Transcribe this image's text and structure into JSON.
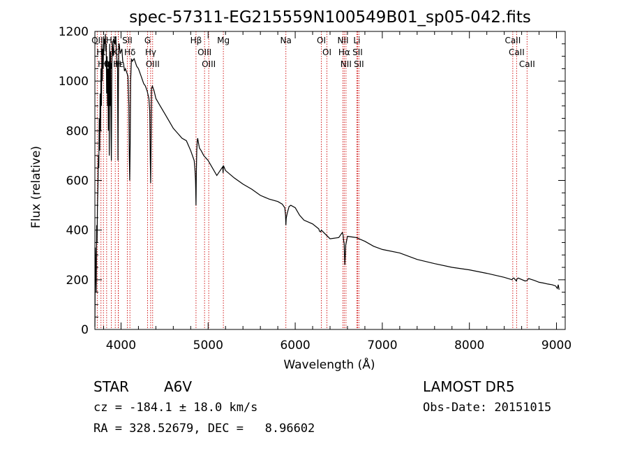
{
  "chart_data": {
    "type": "line",
    "title": "spec-57311-EG215559N100549B01_sp05-042.fits",
    "xlabel": "Wavelength (Å)",
    "ylabel": "Flux (relative)",
    "xlim": [
      3700,
      9100
    ],
    "ylim": [
      0,
      1200
    ],
    "xticks": [
      4000,
      5000,
      6000,
      7000,
      8000,
      9000
    ],
    "xtick_labels": [
      "4000",
      "5000",
      "6000",
      "7000",
      "8000",
      "9000"
    ],
    "yticks": [
      0,
      200,
      400,
      600,
      800,
      1000,
      1200
    ],
    "ytick_labels": [
      "0",
      "200",
      "400",
      "600",
      "800",
      "1000",
      "1200"
    ],
    "grid": false,
    "legend": "none",
    "colors": {
      "spectrum": "#000000",
      "lines": "#cc0000",
      "axes": "#000000"
    },
    "spectrum": {
      "x": [
        3700,
        3705,
        3710,
        3715,
        3720,
        3725,
        3730,
        3735,
        3740,
        3745,
        3750,
        3755,
        3760,
        3765,
        3770,
        3775,
        3780,
        3785,
        3790,
        3795,
        3800,
        3805,
        3810,
        3815,
        3820,
        3825,
        3830,
        3835,
        3840,
        3845,
        3850,
        3855,
        3860,
        3865,
        3870,
        3875,
        3880,
        3885,
        3889,
        3895,
        3900,
        3910,
        3920,
        3930,
        3940,
        3950,
        3960,
        3965,
        3970,
        3975,
        3980,
        3990,
        4000,
        4010,
        4020,
        4030,
        4040,
        4050,
        4060,
        4070,
        4080,
        4090,
        4095,
        4100,
        4105,
        4110,
        4120,
        4130,
        4150,
        4180,
        4200,
        4230,
        4260,
        4280,
        4300,
        4320,
        4330,
        4335,
        4340,
        4345,
        4350,
        4360,
        4380,
        4400,
        4450,
        4500,
        4550,
        4600,
        4650,
        4700,
        4750,
        4800,
        4820,
        4840,
        4850,
        4855,
        4858,
        4861,
        4864,
        4867,
        4870,
        4875,
        4880,
        4890,
        4900,
        4920,
        4950,
        5000,
        5100,
        5168,
        5172,
        5176,
        5200,
        5300,
        5400,
        5500,
        5600,
        5700,
        5800,
        5850,
        5880,
        5889,
        5893,
        5897,
        5910,
        5930,
        5950,
        6000,
        6050,
        6100,
        6200,
        6270,
        6280,
        6290,
        6300,
        6400,
        6500,
        6540,
        6550,
        6555,
        6560,
        6563,
        6566,
        6570,
        6580,
        6600,
        6700,
        6800,
        6900,
        7000,
        7200,
        7400,
        7600,
        7800,
        8000,
        8200,
        8400,
        8490,
        8498,
        8510,
        8540,
        8545,
        8560,
        8640,
        8662,
        8680,
        8750,
        8800,
        8850,
        8900,
        8950,
        8990,
        9000,
        9010,
        9020,
        9030
      ],
      "flux": [
        10,
        330,
        250,
        150,
        420,
        350,
        500,
        580,
        700,
        650,
        850,
        720,
        950,
        800,
        1050,
        900,
        1150,
        1000,
        1130,
        1050,
        1180,
        1120,
        1170,
        1150,
        1190,
        1120,
        1150,
        950,
        1100,
        900,
        1050,
        800,
        1080,
        700,
        1150,
        900,
        1120,
        800,
        680,
        1050,
        1160,
        1100,
        1170,
        1150,
        1180,
        1100,
        1050,
        680,
        1000,
        1150,
        1150,
        1110,
        1120,
        1130,
        1080,
        1070,
        1040,
        1050,
        1040,
        1030,
        1020,
        900,
        700,
        600,
        750,
        1000,
        1090,
        1080,
        1090,
        1060,
        1050,
        1020,
        990,
        980,
        960,
        930,
        880,
        700,
        590,
        750,
        970,
        980,
        960,
        930,
        900,
        870,
        840,
        810,
        790,
        770,
        760,
        720,
        700,
        680,
        640,
        600,
        560,
        500,
        610,
        680,
        720,
        760,
        770,
        750,
        730,
        720,
        700,
        680,
        620,
        655,
        630,
        660,
        640,
        610,
        585,
        565,
        540,
        525,
        515,
        505,
        490,
        460,
        420,
        448,
        470,
        495,
        500,
        490,
        460,
        440,
        425,
        405,
        395,
        393,
        400,
        365,
        370,
        390,
        380,
        360,
        350,
        345,
        300,
        260,
        340,
        375,
        370,
        355,
        335,
        322,
        308,
        282,
        265,
        250,
        240,
        226,
        210,
        200,
        206,
        207,
        195,
        202,
        207,
        195,
        197,
        205,
        197,
        190,
        187,
        183,
        180,
        175,
        170,
        165,
        180,
        160,
        165,
        130,
        180
      ]
    },
    "lines": [
      {
        "label": "Hα",
        "x": 6563
      },
      {
        "label": "Hβ",
        "x": 4861
      },
      {
        "label": "Hγ",
        "x": 4340
      },
      {
        "label": "Hδ",
        "x": 4102
      },
      {
        "label": "Hε",
        "x": 3970
      },
      {
        "label": "Hζ",
        "x": 3889
      },
      {
        "label": "Hη",
        "x": 3835
      },
      {
        "label": "Hθ",
        "x": 3798
      },
      {
        "label": "Hι",
        "x": 3770
      },
      {
        "label": "OII",
        "x": 3727
      },
      {
        "label": "OIII",
        "x": 4363
      },
      {
        "label": "OIII",
        "x": 4959
      },
      {
        "label": "OIII",
        "x": 5007
      },
      {
        "label": "G",
        "x": 4305
      },
      {
        "label": "Mg",
        "x": 5175
      },
      {
        "label": "Na",
        "x": 5893
      },
      {
        "label": "OI",
        "x": 6300
      },
      {
        "label": "OI",
        "x": 6364
      },
      {
        "label": "NII",
        "x": 6548
      },
      {
        "label": "NII",
        "x": 6583
      },
      {
        "label": "Li",
        "x": 6708
      },
      {
        "label": "SII",
        "x": 6716
      },
      {
        "label": "SII",
        "x": 6731
      },
      {
        "label": "SII",
        "x": 4072
      },
      {
        "label": "K",
        "x": 3934
      },
      {
        "label": "H",
        "x": 3968
      },
      {
        "label": "CaII",
        "x": 8498
      },
      {
        "label": "CaII",
        "x": 8542
      },
      {
        "label": "CaII",
        "x": 8662
      }
    ],
    "label_rows": [
      [
        "Hα",
        "Hβ",
        "Hγ",
        "Hδ",
        "Hε",
        "Hζ",
        "Hη",
        "Hθ",
        "Hι"
      ],
      [
        "OII",
        "OIII",
        "OIII",
        "OIII",
        "G",
        "Mg",
        "Na",
        "OI",
        "OI",
        "NII",
        "NII",
        "Li",
        "SII",
        "SII",
        "SII",
        "K",
        "H",
        "CaII",
        "CaII",
        "CaII"
      ]
    ]
  },
  "info": {
    "object_class": "STAR",
    "subclass": "A6V",
    "survey": "LAMOST DR5",
    "redshift": "cz = -184.1 ± 18.0 km/s",
    "obs_date": "Obs-Date: 20151015",
    "coords": "RA = 328.52679, DEC =   8.96602"
  }
}
